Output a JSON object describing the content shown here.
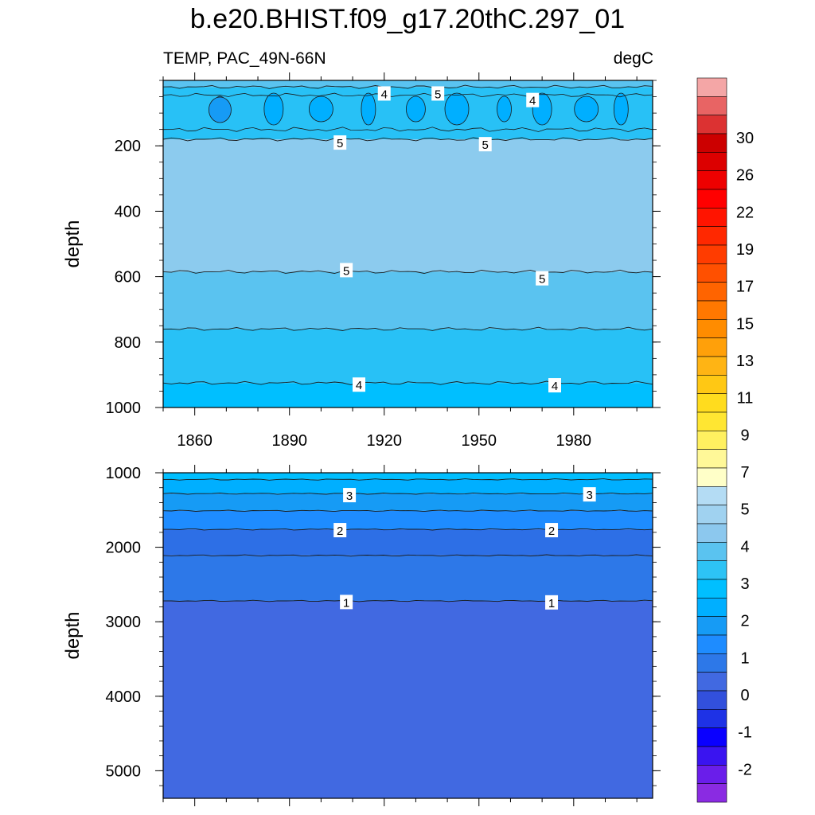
{
  "title": "b.e20.BHIST.f09_g17.20thC.297_01",
  "subtitle_left": "TEMP, PAC_49N-66N",
  "subtitle_right": "degC",
  "chart_data": [
    {
      "type": "heatmap",
      "panel": "upper",
      "variable": "TEMP",
      "region": "PAC_49N-66N",
      "units": "degC",
      "x": {
        "label": "",
        "range": [
          1850,
          2005
        ],
        "ticks": [
          1860,
          1890,
          1920,
          1950,
          1980
        ],
        "tick_labels": [
          "1860",
          "1890",
          "1920",
          "1950",
          "1980"
        ]
      },
      "y": {
        "label": "depth",
        "range": [
          0,
          1000
        ],
        "inverted": true,
        "ticks": [
          200,
          400,
          600,
          800,
          1000
        ],
        "tick_labels": [
          "200",
          "400",
          "600",
          "800",
          "1000"
        ]
      },
      "layers": [
        {
          "depth_top": 0,
          "depth_bottom": 20,
          "value_range": [
            4.5,
            5
          ]
        },
        {
          "depth_top": 20,
          "depth_bottom": 180,
          "value_range": [
            3.5,
            4.5
          ]
        },
        {
          "depth_top": 180,
          "depth_bottom": 585,
          "value_range": [
            5,
            5.5
          ]
        },
        {
          "depth_top": 585,
          "depth_bottom": 760,
          "value_range": [
            4.5,
            5
          ]
        },
        {
          "depth_top": 760,
          "depth_bottom": 925,
          "value_range": [
            4,
            4.5
          ]
        },
        {
          "depth_top": 925,
          "depth_bottom": 1000,
          "value_range": [
            3.5,
            4
          ]
        }
      ],
      "contour_labels": [
        {
          "text": "4",
          "x": 1920,
          "y": 40
        },
        {
          "text": "5",
          "x": 1937,
          "y": 40
        },
        {
          "text": "4",
          "x": 1967,
          "y": 60
        },
        {
          "text": "5",
          "x": 1906,
          "y": 190
        },
        {
          "text": "5",
          "x": 1952,
          "y": 195
        },
        {
          "text": "5",
          "x": 1908,
          "y": 580
        },
        {
          "text": "5",
          "x": 1970,
          "y": 605
        },
        {
          "text": "4",
          "x": 1912,
          "y": 930
        },
        {
          "text": "4",
          "x": 1974,
          "y": 932
        }
      ]
    },
    {
      "type": "heatmap",
      "panel": "lower",
      "variable": "TEMP",
      "region": "PAC_49N-66N",
      "units": "degC",
      "x": {
        "label": "",
        "range": [
          1850,
          2005
        ]
      },
      "y": {
        "label": "depth",
        "range": [
          1000,
          5370
        ],
        "inverted": true,
        "ticks": [
          1000,
          2000,
          3000,
          4000,
          5000
        ],
        "tick_labels": [
          "1000",
          "2000",
          "3000",
          "4000",
          "5000"
        ]
      },
      "layers": [
        {
          "depth_top": 1000,
          "depth_bottom": 1090,
          "value_range": [
            3.5,
            4
          ]
        },
        {
          "depth_top": 1090,
          "depth_bottom": 1280,
          "value_range": [
            3,
            3.5
          ]
        },
        {
          "depth_top": 1280,
          "depth_bottom": 1510,
          "value_range": [
            2.5,
            3
          ]
        },
        {
          "depth_top": 1510,
          "depth_bottom": 1760,
          "value_range": [
            2,
            2.5
          ]
        },
        {
          "depth_top": 1760,
          "depth_bottom": 2110,
          "value_range": [
            1.5,
            2
          ]
        },
        {
          "depth_top": 2110,
          "depth_bottom": 2720,
          "value_range": [
            1,
            1.5
          ]
        },
        {
          "depth_top": 2720,
          "depth_bottom": 5370,
          "value_range": [
            0.5,
            1
          ]
        }
      ],
      "contour_labels": [
        {
          "text": "3",
          "x": 1909,
          "y": 1300
        },
        {
          "text": "3",
          "x": 1985,
          "y": 1290
        },
        {
          "text": "2",
          "x": 1906,
          "y": 1770
        },
        {
          "text": "2",
          "x": 1973,
          "y": 1770
        },
        {
          "text": "1",
          "x": 1908,
          "y": 2735
        },
        {
          "text": "1",
          "x": 1973,
          "y": 2740
        }
      ]
    }
  ],
  "colorbar": {
    "units": "degC",
    "colors": [
      "#8a2be2",
      "#6a1eea",
      "#3a14f0",
      "#0a00ff",
      "#1e32e6",
      "#3250dc",
      "#4169e1",
      "#2d78e8",
      "#1e8cff",
      "#169bf5",
      "#00afff",
      "#00bfff",
      "#2dc3f5",
      "#5ac3f0",
      "#8cc8ee",
      "#a0d2f0",
      "#b4dcf4",
      "#ffffc8",
      "#fff898",
      "#fff060",
      "#ffe632",
      "#ffdc1e",
      "#ffc814",
      "#ffb414",
      "#ffa00a",
      "#ff8c00",
      "#ff7800",
      "#ff6400",
      "#ff5000",
      "#ff3c00",
      "#ff2800",
      "#ff1400",
      "#ff0000",
      "#ee0000",
      "#dc0000",
      "#cc0000",
      "#dc3232",
      "#e86464",
      "#f4a6a6"
    ],
    "tick_labels": [
      "-2",
      "-1",
      "0",
      "1",
      "2",
      "3",
      "4",
      "5",
      "7",
      "9",
      "11",
      "13",
      "15",
      "17",
      "19",
      "22",
      "26",
      "30"
    ]
  }
}
